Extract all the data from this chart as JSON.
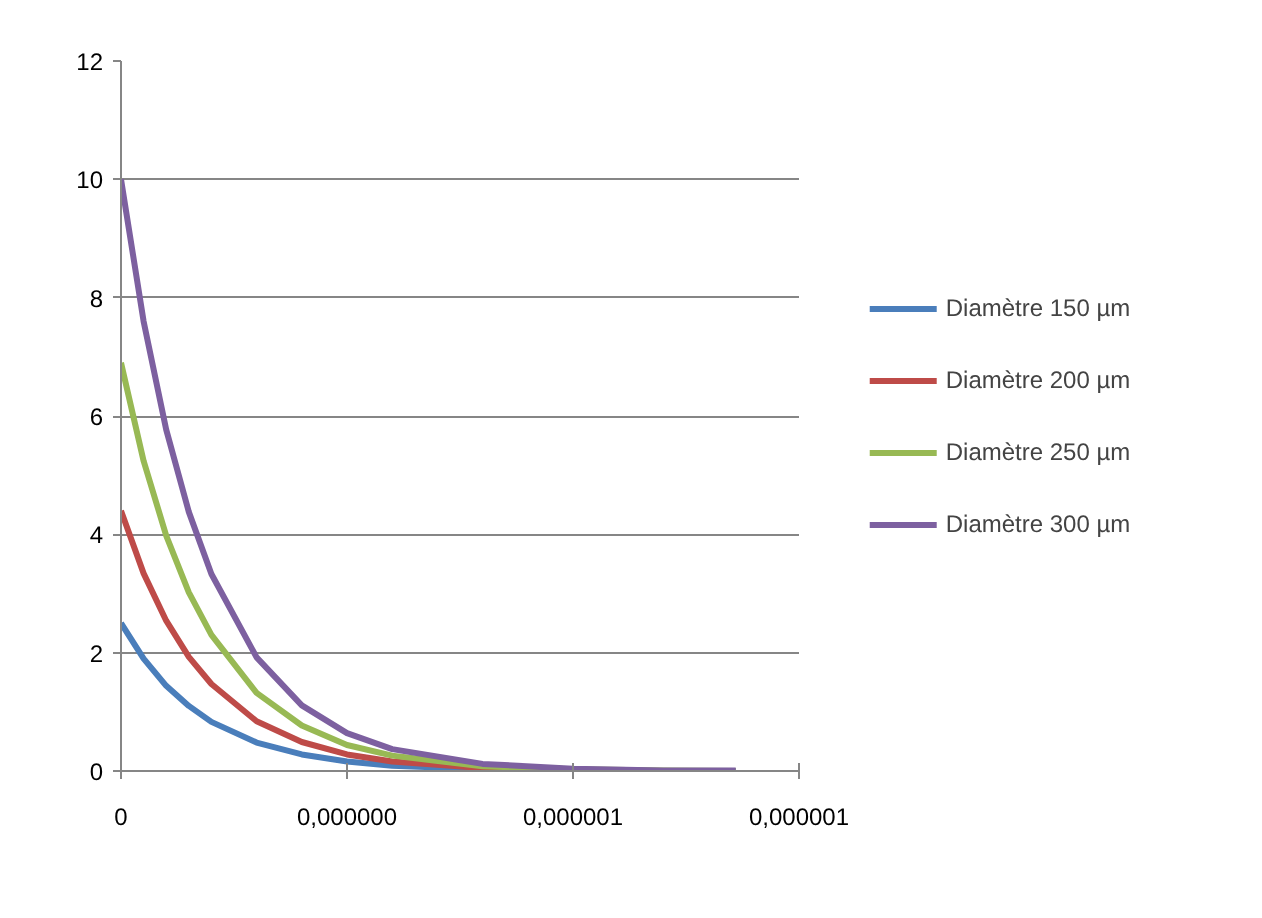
{
  "chart_data": {
    "type": "line",
    "x": [
      0,
      5e-08,
      1e-07,
      1.5e-07,
      2e-07,
      3e-07,
      4e-07,
      5e-07,
      6e-07,
      8e-07,
      1e-06,
      1.2e-06,
      1.36e-06
    ],
    "series": [
      {
        "name": "Diamètre 150 µm",
        "color": "#4a7ebb",
        "values": [
          2.5,
          1.9,
          1.44,
          1.1,
          0.83,
          0.48,
          0.28,
          0.16,
          0.09,
          0.03,
          0.01,
          0,
          0
        ]
      },
      {
        "name": "Diamètre 200 µm",
        "color": "#be4b48",
        "x": [
          0,
          5e-08,
          1e-07,
          1.5e-07,
          2e-07,
          3e-07,
          4e-07,
          5e-07,
          6e-07,
          8e-07,
          1e-06
        ],
        "values": [
          4.4,
          3.34,
          2.54,
          1.93,
          1.47,
          0.84,
          0.49,
          0.28,
          0.16,
          0.05,
          0.02
        ]
      },
      {
        "name": "Diamètre 250 µm",
        "color": "#98b954",
        "values": [
          6.9,
          5.24,
          3.98,
          3.02,
          2.3,
          1.32,
          0.77,
          0.44,
          0.26,
          0.08,
          0.03,
          0.01,
          0
        ]
      },
      {
        "name": "Diamètre 300 µm",
        "color": "#7d60a0",
        "values": [
          10,
          7.6,
          5.77,
          4.38,
          3.33,
          1.92,
          1.11,
          0.64,
          0.37,
          0.12,
          0.04,
          0.01,
          0.01
        ]
      }
    ],
    "xlim": [
      0,
      1.5e-06
    ],
    "xticks": [
      0,
      {
        "value": 5e-07,
        "label": "0,000000"
      },
      {
        "value": 1e-06,
        "label": "0,000001"
      },
      {
        "value": 1.5e-06,
        "label": "0,000001"
      }
    ],
    "ylim": [
      0,
      12
    ],
    "yticks": [
      0,
      2,
      4,
      6,
      8,
      10,
      12
    ],
    "grid": "y",
    "legend": "right",
    "marker": "none",
    "line_style": "solid"
  }
}
